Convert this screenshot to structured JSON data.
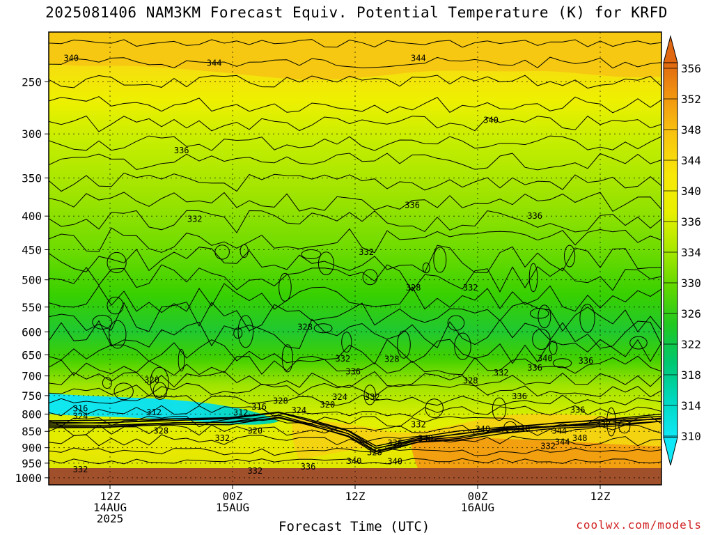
{
  "title": "2025081406 NAM3KM Forecast Equiv. Potential Temperature (K) for KRFD",
  "credit": "coolwx.com/models",
  "chart_data": {
    "type": "heatmap",
    "title": "2025081406 NAM3KM Forecast Equiv. Potential Temperature (K) for KRFD",
    "xlabel": "Forecast Time (UTC)",
    "ylabel": "",
    "y_scale": "log-pressure",
    "y_ticks": [
      "250",
      "300",
      "350",
      "400",
      "450",
      "500",
      "550",
      "600",
      "650",
      "700",
      "750",
      "800",
      "850",
      "900",
      "950",
      "1000"
    ],
    "y_tick_values": [
      250,
      300,
      350,
      400,
      450,
      500,
      550,
      600,
      650,
      700,
      750,
      800,
      850,
      900,
      950,
      1000
    ],
    "ylim": [
      1025,
      210
    ],
    "x_ticks": [
      {
        "lines": [
          "12Z",
          "14AUG",
          "2025"
        ],
        "hour": 6
      },
      {
        "lines": [
          "00Z",
          "15AUG"
        ],
        "hour": 18
      },
      {
        "lines": [
          "12Z"
        ],
        "hour": 30
      },
      {
        "lines": [
          "00Z",
          "16AUG"
        ],
        "hour": 42
      },
      {
        "lines": [
          "12Z"
        ],
        "hour": 54
      }
    ],
    "xlim_hours": [
      0,
      60
    ],
    "grid": true,
    "colorbar": {
      "labels": [
        "356",
        "352",
        "348",
        "344",
        "340",
        "336",
        "334",
        "330",
        "326",
        "322",
        "318",
        "314",
        "310"
      ],
      "levels": [
        356,
        352,
        348,
        344,
        340,
        336,
        334,
        330,
        326,
        322,
        318,
        314,
        310
      ],
      "colors": [
        "#e07810",
        "#f0a010",
        "#f8c010",
        "#f8e010",
        "#f0f000",
        "#c8f000",
        "#a0e800",
        "#70e000",
        "#30d000",
        "#00c840",
        "#00d8a0",
        "#00e8e0",
        "#10e8f8"
      ]
    },
    "contour_labels": [
      {
        "text": "340",
        "hour": 2.2,
        "p": 230
      },
      {
        "text": "344",
        "hour": 16.2,
        "p": 234
      },
      {
        "text": "344",
        "hour": 36.2,
        "p": 230
      },
      {
        "text": "340",
        "hour": 43.3,
        "p": 286
      },
      {
        "text": "336",
        "hour": 13.0,
        "p": 318
      },
      {
        "text": "336",
        "hour": 35.6,
        "p": 385
      },
      {
        "text": "336",
        "hour": 47.6,
        "p": 400
      },
      {
        "text": "332",
        "hour": 14.3,
        "p": 404
      },
      {
        "text": "332",
        "hour": 31.1,
        "p": 454
      },
      {
        "text": "328",
        "hour": 35.7,
        "p": 514
      },
      {
        "text": "332",
        "hour": 41.3,
        "p": 514
      },
      {
        "text": "328",
        "hour": 25.1,
        "p": 590
      },
      {
        "text": "332",
        "hour": 28.8,
        "p": 659
      },
      {
        "text": "328",
        "hour": 33.6,
        "p": 660
      },
      {
        "text": "340",
        "hour": 48.6,
        "p": 658
      },
      {
        "text": "336",
        "hour": 52.6,
        "p": 664
      },
      {
        "text": "336",
        "hour": 47.6,
        "p": 680
      },
      {
        "text": "336",
        "hour": 29.8,
        "p": 690
      },
      {
        "text": "332",
        "hour": 44.3,
        "p": 692
      },
      {
        "text": "320",
        "hour": 10.1,
        "p": 710
      },
      {
        "text": "328",
        "hour": 41.3,
        "p": 712
      },
      {
        "text": "332",
        "hour": 31.7,
        "p": 754
      },
      {
        "text": "324",
        "hour": 28.5,
        "p": 754
      },
      {
        "text": "336",
        "hour": 46.1,
        "p": 752
      },
      {
        "text": "328",
        "hour": 22.7,
        "p": 764
      },
      {
        "text": "320",
        "hour": 27.3,
        "p": 774
      },
      {
        "text": "316",
        "hour": 20.6,
        "p": 780
      },
      {
        "text": "324",
        "hour": 24.5,
        "p": 790
      },
      {
        "text": "316",
        "hour": 3.1,
        "p": 785
      },
      {
        "text": "312",
        "hour": 10.3,
        "p": 795
      },
      {
        "text": "312",
        "hour": 18.8,
        "p": 796
      },
      {
        "text": "336",
        "hour": 51.8,
        "p": 789
      },
      {
        "text": "324",
        "hour": 3.1,
        "p": 806
      },
      {
        "text": "332",
        "hour": 36.2,
        "p": 830
      },
      {
        "text": "332",
        "hour": 54.3,
        "p": 828
      },
      {
        "text": "340",
        "hour": 42.5,
        "p": 843
      },
      {
        "text": "340",
        "hour": 46.4,
        "p": 843
      },
      {
        "text": "344",
        "hour": 50.0,
        "p": 848
      },
      {
        "text": "328",
        "hour": 11.0,
        "p": 848
      },
      {
        "text": "320",
        "hour": 20.2,
        "p": 848
      },
      {
        "text": "348",
        "hour": 36.9,
        "p": 872
      },
      {
        "text": "332",
        "hour": 17.0,
        "p": 870
      },
      {
        "text": "348",
        "hour": 52.0,
        "p": 870
      },
      {
        "text": "336",
        "hour": 33.9,
        "p": 885
      },
      {
        "text": "344",
        "hour": 50.3,
        "p": 882
      },
      {
        "text": "332",
        "hour": 48.9,
        "p": 895
      },
      {
        "text": "328",
        "hour": 31.9,
        "p": 915
      },
      {
        "text": "340",
        "hour": 29.9,
        "p": 943
      },
      {
        "text": "340",
        "hour": 33.9,
        "p": 945
      },
      {
        "text": "336",
        "hour": 25.4,
        "p": 962
      },
      {
        "text": "332",
        "hour": 3.1,
        "p": 972
      },
      {
        "text": "332",
        "hour": 20.2,
        "p": 976
      }
    ]
  }
}
